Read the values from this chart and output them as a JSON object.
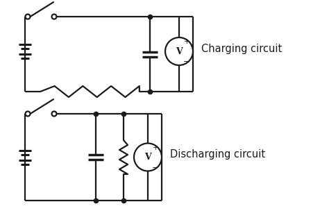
{
  "bg_color": "#ffffff",
  "line_color": "#1a1a1a",
  "line_width": 1.6,
  "dot_size": 4.5,
  "charging_label": "Charging circuit",
  "discharging_label": "Discharging circuit",
  "label_fontsize": 10.5,
  "figsize": [
    4.74,
    3.07
  ],
  "dpi": 100
}
